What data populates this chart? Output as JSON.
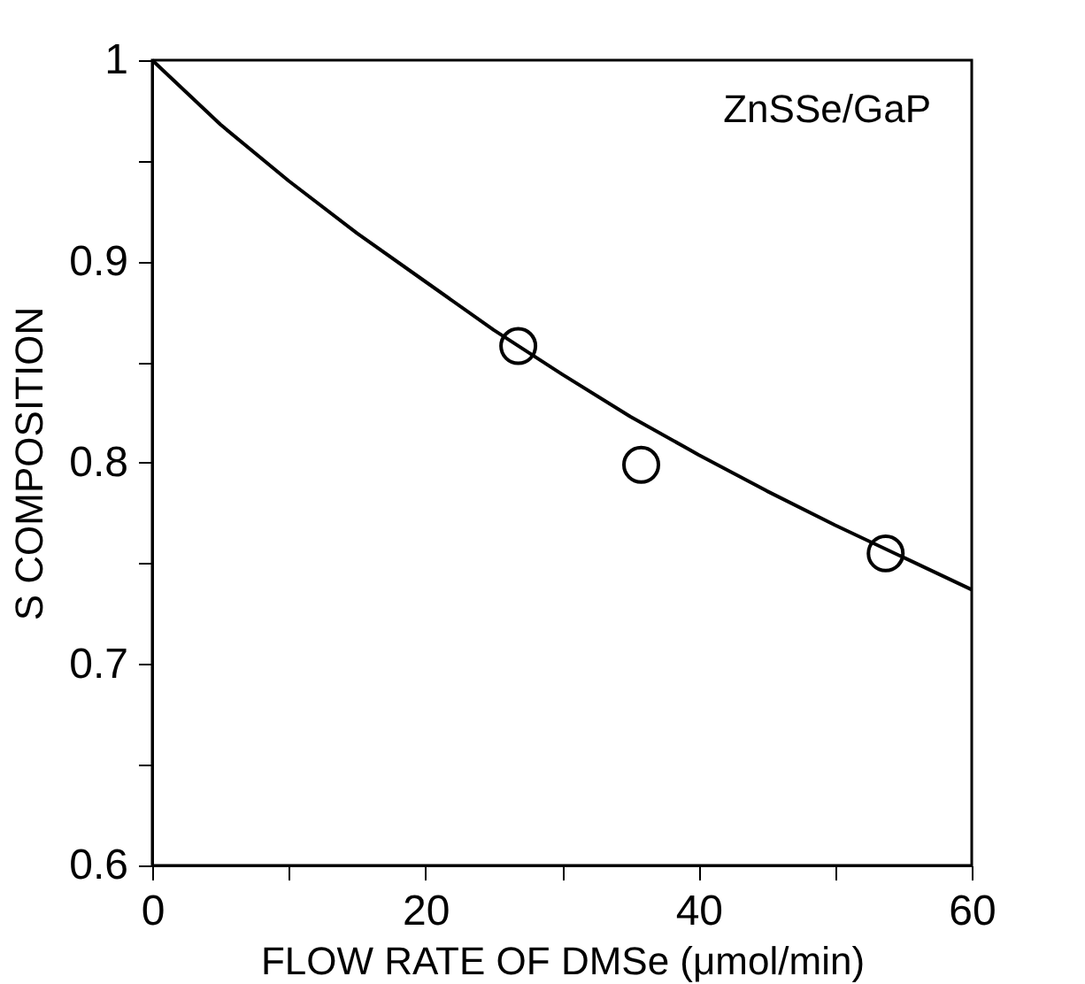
{
  "chart_data": {
    "type": "scatter",
    "xlabel": "FLOW RATE OF DMSe  (μmol/min)",
    "ylabel": "S COMPOSITION",
    "annotations": [
      "ZnSSe/GaP"
    ],
    "xlim": [
      0,
      60
    ],
    "ylim": [
      0.6,
      1
    ],
    "xticks": [
      0,
      {
        "value": 10,
        "label": null
      },
      20,
      {
        "value": 30,
        "label": null
      },
      40,
      {
        "value": 50,
        "label": null
      },
      60
    ],
    "yticks": [
      0.6,
      {
        "value": 0.65,
        "label": null
      },
      0.7,
      {
        "value": 0.75,
        "label": null
      },
      0.8,
      {
        "value": 0.85,
        "label": null
      },
      0.9,
      {
        "value": 0.95,
        "label": null
      },
      1
    ],
    "grid": false,
    "series": [
      {
        "marker": "circle",
        "color": "#000000",
        "x": [
          26.8,
          35.8,
          53.7
        ],
        "values": [
          0.858,
          0.799,
          0.755
        ]
      },
      {
        "type": "line",
        "marker": "none",
        "line_style": "solid",
        "color": "#000000",
        "x": [
          0,
          5,
          10,
          15,
          20,
          25,
          30,
          35,
          40,
          45,
          50,
          55,
          60
        ],
        "values": [
          1.0,
          0.968,
          0.94,
          0.914,
          0.89,
          0.866,
          0.844,
          0.823,
          0.804,
          0.786,
          0.769,
          0.753,
          0.737
        ]
      }
    ]
  }
}
